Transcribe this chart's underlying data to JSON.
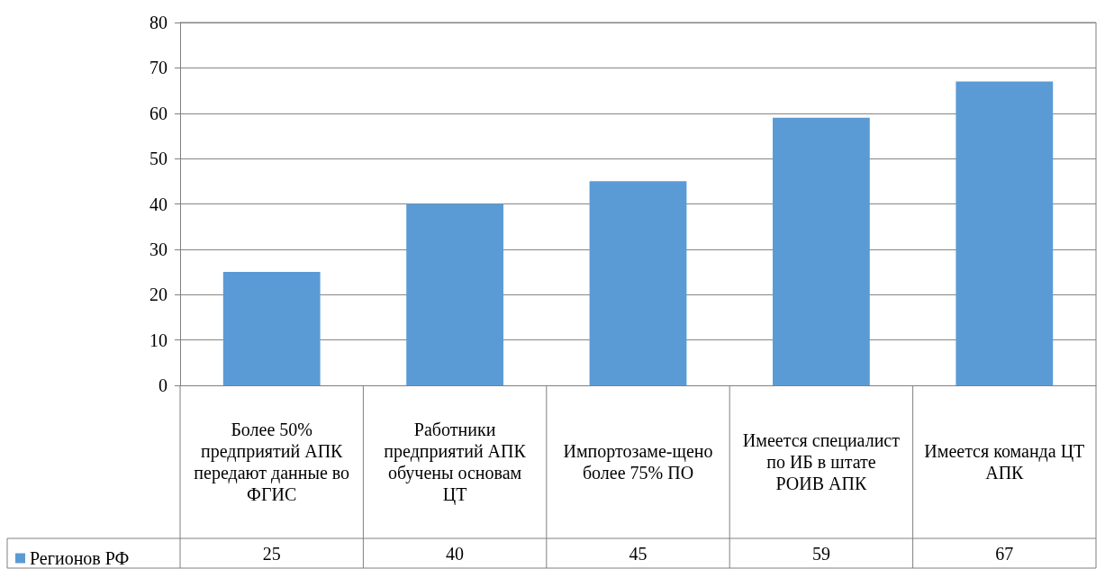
{
  "chart_data": {
    "type": "bar",
    "categories": [
      "Более 50% предприятий АПК передают данные во ФГИС",
      "Работники предприятий АПК обучены основам ЦТ",
      "Импортозаме-щено более 75% ПО",
      "Имеется специалист по ИБ в штате РОИВ АПК",
      "Имеется команда ЦТ АПК"
    ],
    "series": [
      {
        "name": "Регионов РФ",
        "color": "#5b9bd5",
        "values": [
          25,
          40,
          45,
          59,
          67
        ]
      }
    ],
    "ylim": [
      0,
      80
    ],
    "yticks": [
      0,
      10,
      20,
      30,
      40,
      50,
      60,
      70,
      80
    ],
    "grid": "y",
    "legend": "bottom left",
    "data_labels": true
  }
}
